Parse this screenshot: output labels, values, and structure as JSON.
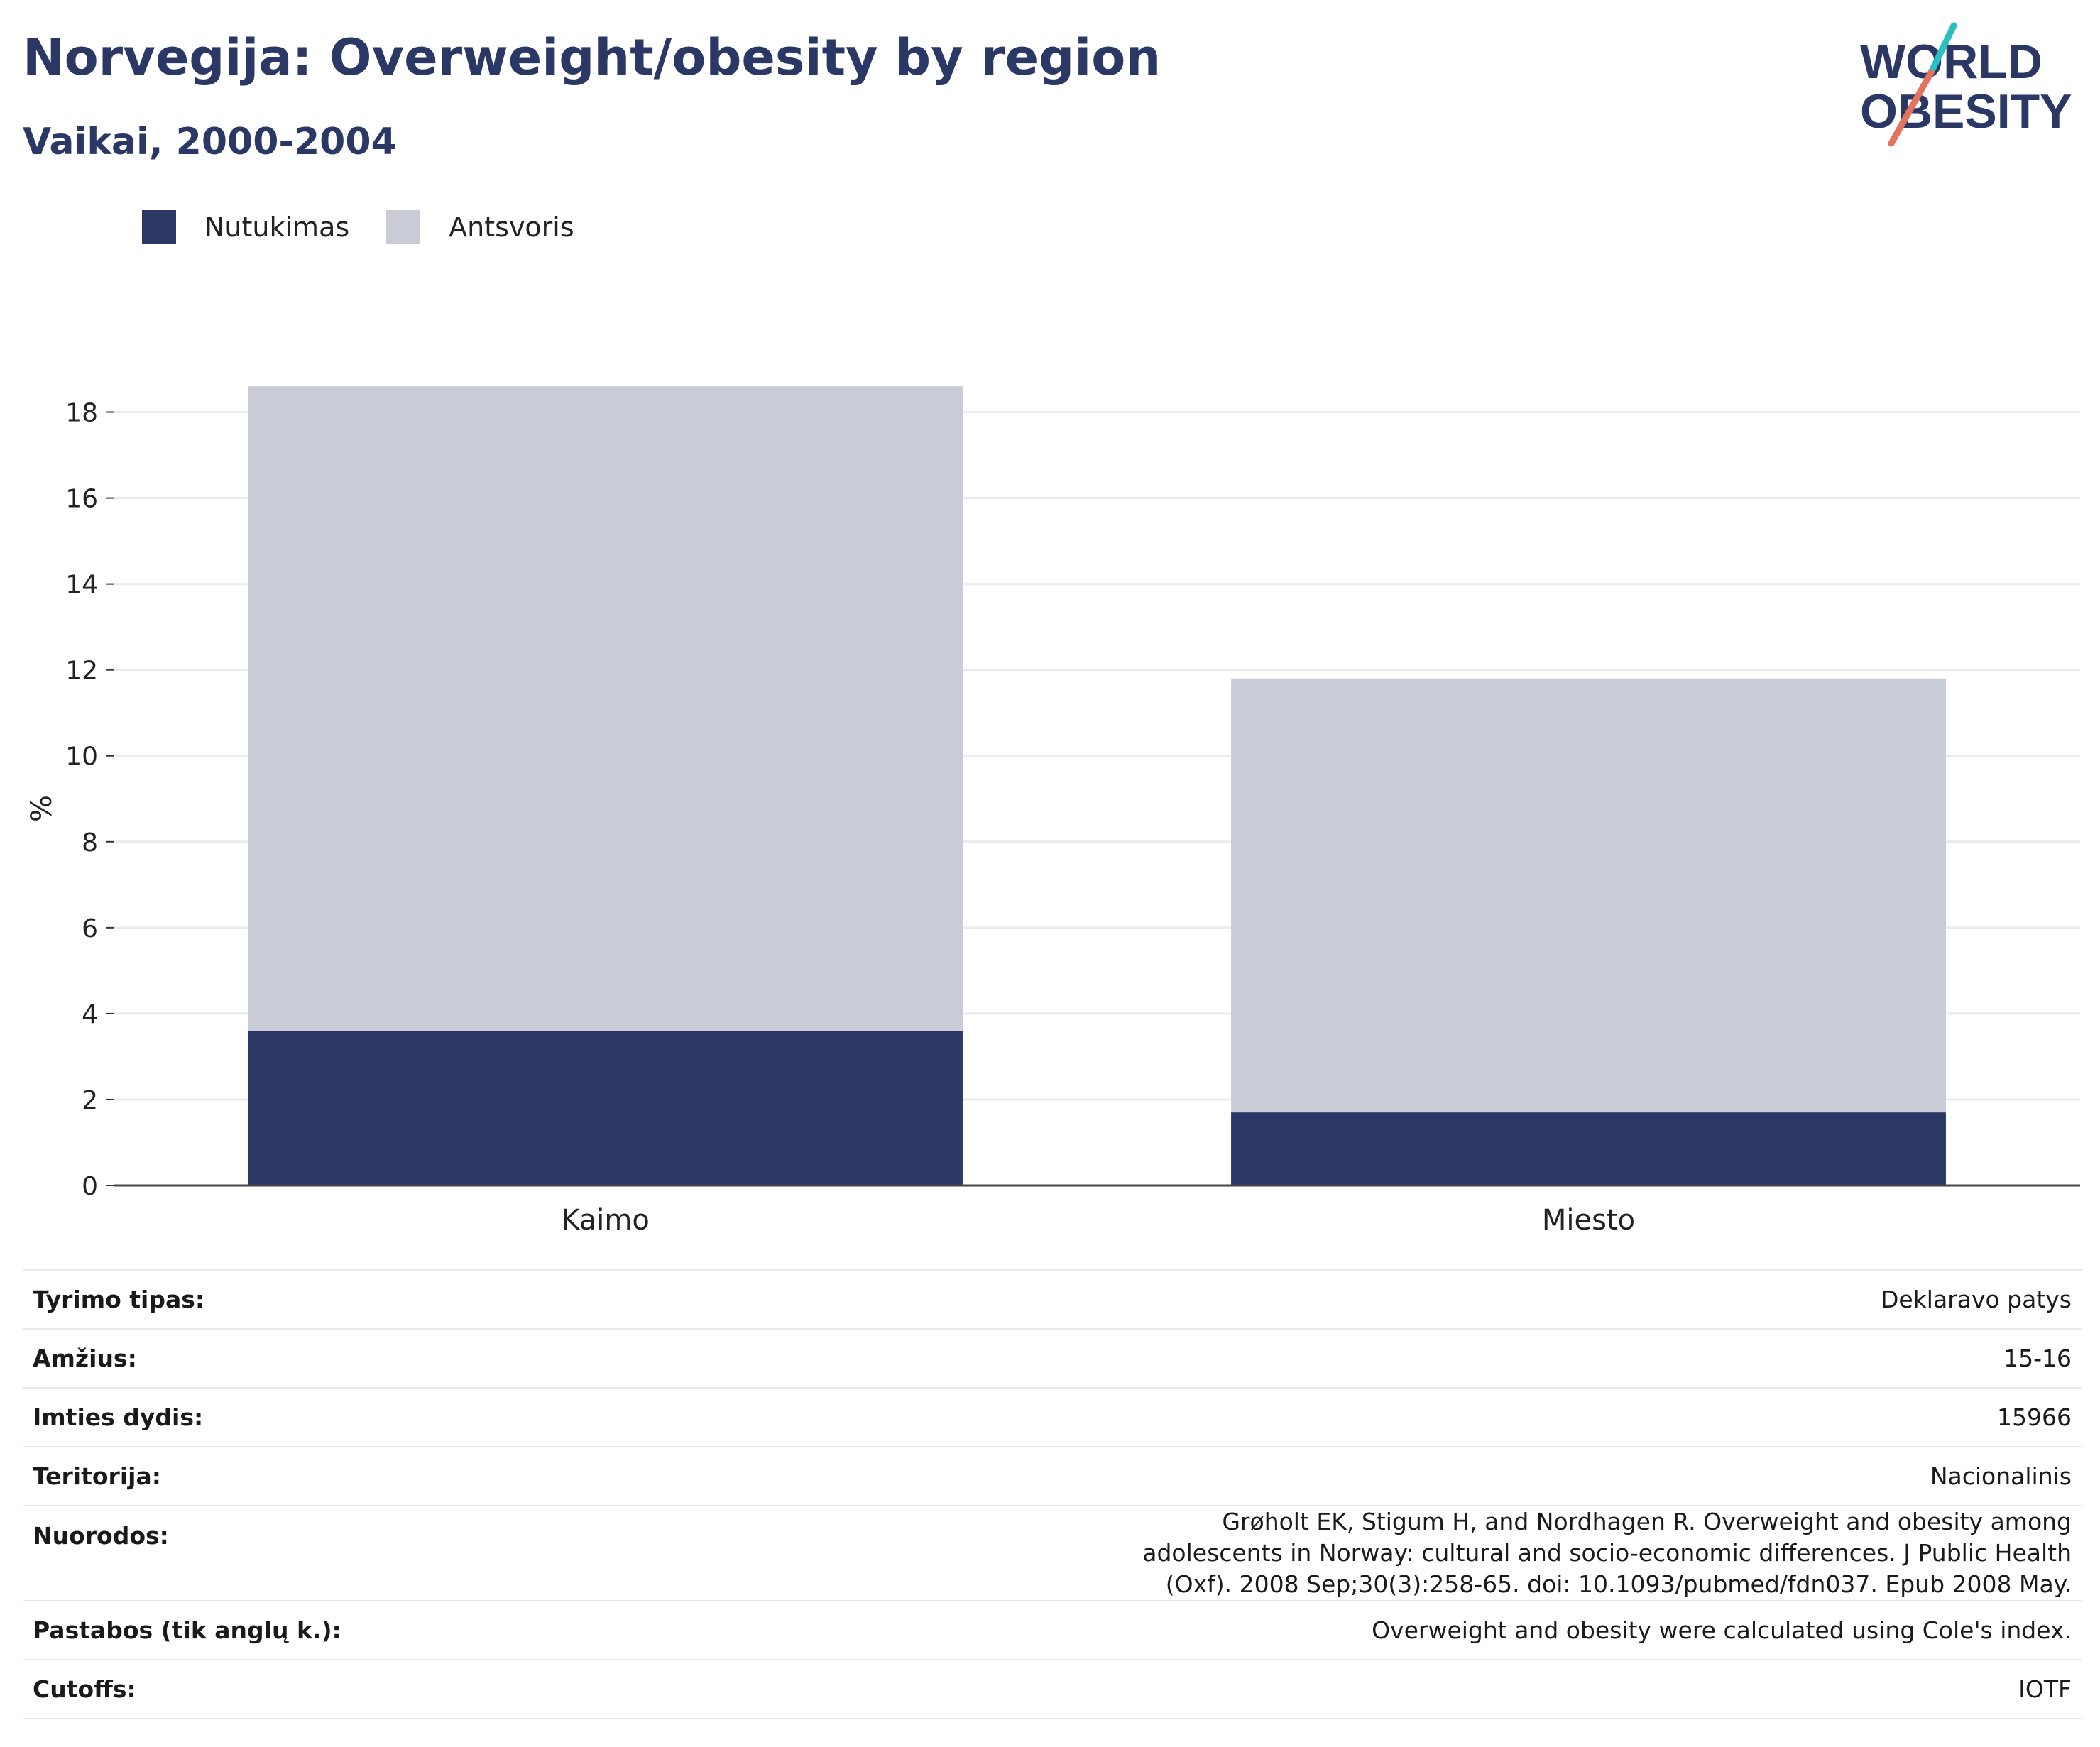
{
  "header": {
    "title": "Norvegija: Overweight/obesity by region",
    "subtitle": "Vaikai, 2000-2004"
  },
  "logo": {
    "line1": "WORLD",
    "line2": "OBESITY",
    "colors": {
      "text": "#2b3765",
      "teal": "#2bbfc1",
      "coral": "#e2735f"
    }
  },
  "legend": {
    "items": [
      {
        "label": "Nutukimas",
        "color": "#2b3765"
      },
      {
        "label": "Antsvoris",
        "color": "#c9ccd7"
      }
    ]
  },
  "chart_data": {
    "type": "bar",
    "stacked": true,
    "categories": [
      "Kaimo",
      "Miesto"
    ],
    "series": [
      {
        "name": "Nutukimas",
        "values": [
          3.6,
          1.7
        ],
        "color": "#2b3765"
      },
      {
        "name": "Antsvoris",
        "values": [
          15.0,
          10.1
        ],
        "color": "#c9ccd7"
      }
    ],
    "ylabel": "%",
    "ylim": [
      0,
      19
    ],
    "yticks": [
      0,
      2,
      4,
      6,
      8,
      10,
      12,
      14,
      16,
      18
    ],
    "grid": true,
    "legend_position": "top-left"
  },
  "info": {
    "rows": [
      {
        "label": "Tyrimo tipas:",
        "value": "Deklaravo patys"
      },
      {
        "label": "Amžius:",
        "value": "15-16"
      },
      {
        "label": "Imties dydis:",
        "value": "15966"
      },
      {
        "label": "Teritorija:",
        "value": "Nacionalinis"
      },
      {
        "label": "Nuorodos:",
        "value": "Grøholt EK, Stigum H, and Nordhagen R. Overweight and obesity among adolescents in Norway: cultural and socio-economic differences. J Public Health (Oxf). 2008 Sep;30(3):258-65. doi: 10.1093/pubmed/fdn037. Epub 2008 May."
      },
      {
        "label": "Pastabos (tik anglų k.):",
        "value": "Overweight and obesity were calculated using Cole's index."
      },
      {
        "label": "Cutoffs:",
        "value": "IOTF"
      }
    ]
  }
}
